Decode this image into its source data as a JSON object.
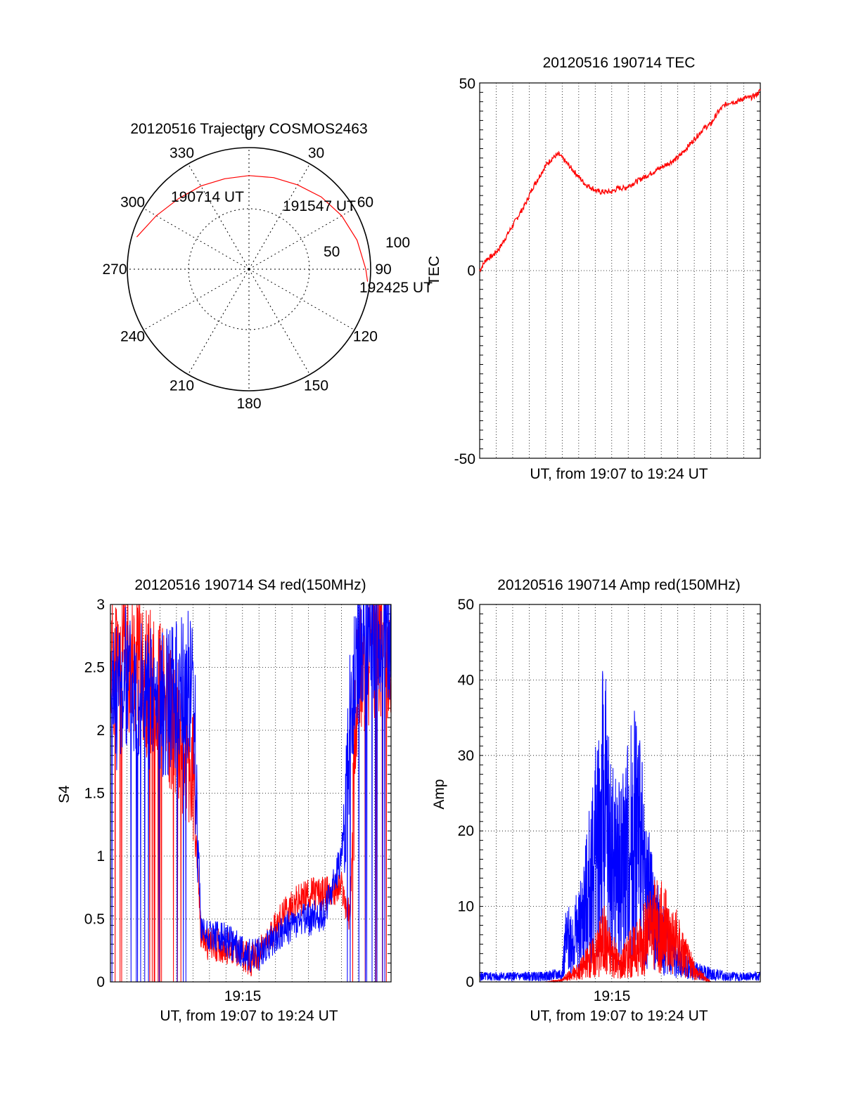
{
  "chart_data": [
    {
      "type": "polar",
      "title": "20120516 Trajectory COSMOS2463",
      "azimuth_labels": [
        "0",
        "30",
        "60",
        "90",
        "120",
        "150",
        "180",
        "210",
        "240",
        "270",
        "300",
        "330"
      ],
      "radial_labels": [
        "50",
        "100"
      ],
      "rlim": [
        0,
        100
      ],
      "trajectory": {
        "color": "#ff0000",
        "az": [
          286,
          300,
          315,
          330,
          345,
          0,
          15,
          30,
          45,
          60,
          75,
          90,
          96
        ],
        "r": [
          96,
          88,
          82,
          79,
          77,
          77,
          78,
          80,
          84,
          88,
          92,
          96,
          98
        ]
      },
      "time_labels": [
        "190714 UT",
        "191547 UT",
        "192425 UT"
      ]
    },
    {
      "type": "line",
      "title": "20120516 190714 TEC",
      "xlabel": "UT, from 19:07 to 19:24 UT",
      "ylabel": "TEC",
      "ylim": [
        -50,
        50
      ],
      "yticks": [
        "50",
        "0",
        "-50"
      ],
      "grid": true,
      "series": [
        {
          "color": "#ff0000",
          "x": [
            0,
            0.4,
            0.8,
            1.2,
            1.6,
            2.0,
            2.4,
            2.8,
            3.2,
            3.6,
            4.0,
            4.4,
            4.8,
            5.2,
            5.6,
            6.0,
            6.4,
            6.8,
            7.2,
            7.6,
            8.0,
            8.4,
            8.8,
            9.2,
            9.6,
            10.0,
            10.4,
            10.8,
            11.2,
            11.6,
            12.0,
            12.4,
            12.8,
            13.2,
            13.6,
            14.0,
            14.4,
            14.8,
            15.2,
            15.6,
            16.0,
            16.4,
            16.8,
            17.0
          ],
          "y": [
            0,
            3,
            4,
            6,
            9,
            12,
            15,
            18,
            22,
            25,
            28,
            30,
            31,
            29,
            27,
            25,
            23,
            22,
            21,
            21,
            21,
            22,
            22,
            23,
            24,
            25,
            26,
            27,
            28,
            29,
            30,
            32,
            34,
            36,
            38,
            39,
            42,
            44,
            45,
            45,
            46,
            46,
            47,
            48
          ]
        }
      ]
    },
    {
      "type": "line",
      "title": "20120516 190714 S4 red(150MHz)",
      "xlabel": "UT, from 19:07 to 19:24 UT",
      "ylabel": "S4",
      "xticks": [
        "19:15"
      ],
      "ylim": [
        0,
        3
      ],
      "yticks": [
        "0",
        "0.5",
        "1",
        "1.5",
        "2",
        "2.5",
        "3"
      ],
      "grid": true,
      "series": [
        {
          "color": "#0000ff",
          "x": [
            0,
            1,
            2,
            3,
            4,
            5,
            5.5,
            6,
            7,
            8,
            8.5,
            9,
            9.5,
            10,
            11,
            12,
            13,
            14,
            14.5,
            15,
            16,
            17
          ],
          "y": [
            2.2,
            2.4,
            2.3,
            2.2,
            2.3,
            2.4,
            0.4,
            0.38,
            0.33,
            0.25,
            0.2,
            0.22,
            0.28,
            0.36,
            0.45,
            0.5,
            0.55,
            1.0,
            2.0,
            2.7,
            2.8,
            2.8
          ]
        },
        {
          "color": "#ff0000",
          "x": [
            0,
            1,
            2,
            3,
            4,
            5,
            5.5,
            6,
            7,
            8,
            8.5,
            9,
            9.5,
            10,
            11,
            12,
            13,
            14,
            14.5,
            15,
            16,
            17
          ],
          "y": [
            2.5,
            2.6,
            2.4,
            2.3,
            2.0,
            1.6,
            0.35,
            0.3,
            0.28,
            0.22,
            0.18,
            0.22,
            0.3,
            0.45,
            0.6,
            0.7,
            0.7,
            0.75,
            0.5,
            2.5,
            2.7,
            2.7
          ]
        }
      ]
    },
    {
      "type": "line",
      "title": "20120516 190714 Amp red(150MHz)",
      "xlabel": "UT, from 19:07 to 19:24 UT",
      "ylabel": "Amp",
      "xticks": [
        "19:15"
      ],
      "ylim": [
        0,
        50
      ],
      "yticks": [
        "0",
        "10",
        "20",
        "30",
        "40",
        "50"
      ],
      "grid": true,
      "series": [
        {
          "color": "#0000ff",
          "x": [
            0,
            1,
            2,
            3,
            4,
            5,
            5.2,
            6,
            6.5,
            7,
            7.5,
            8,
            8.5,
            9,
            9.5,
            10,
            10.5,
            11,
            12,
            13,
            14,
            15,
            16,
            17
          ],
          "y": [
            1,
            1,
            1,
            1,
            1,
            1.5,
            7,
            9,
            15,
            23,
            33,
            22,
            20,
            25,
            30,
            18,
            12,
            8,
            4,
            2,
            1.5,
            1,
            1,
            1
          ]
        },
        {
          "color": "#ff0000",
          "x": [
            0,
            1,
            2,
            3,
            4,
            5,
            5.2,
            6,
            6.5,
            7,
            7.5,
            8,
            8.5,
            9,
            9.5,
            10,
            10.5,
            11,
            12,
            13,
            14,
            15,
            16,
            17
          ],
          "y": [
            0,
            0,
            0,
            0,
            0,
            0.3,
            0.8,
            2,
            3.5,
            5,
            8,
            5,
            3,
            5,
            6,
            8,
            10,
            10,
            7,
            2,
            0,
            0,
            0,
            0
          ]
        }
      ]
    }
  ]
}
